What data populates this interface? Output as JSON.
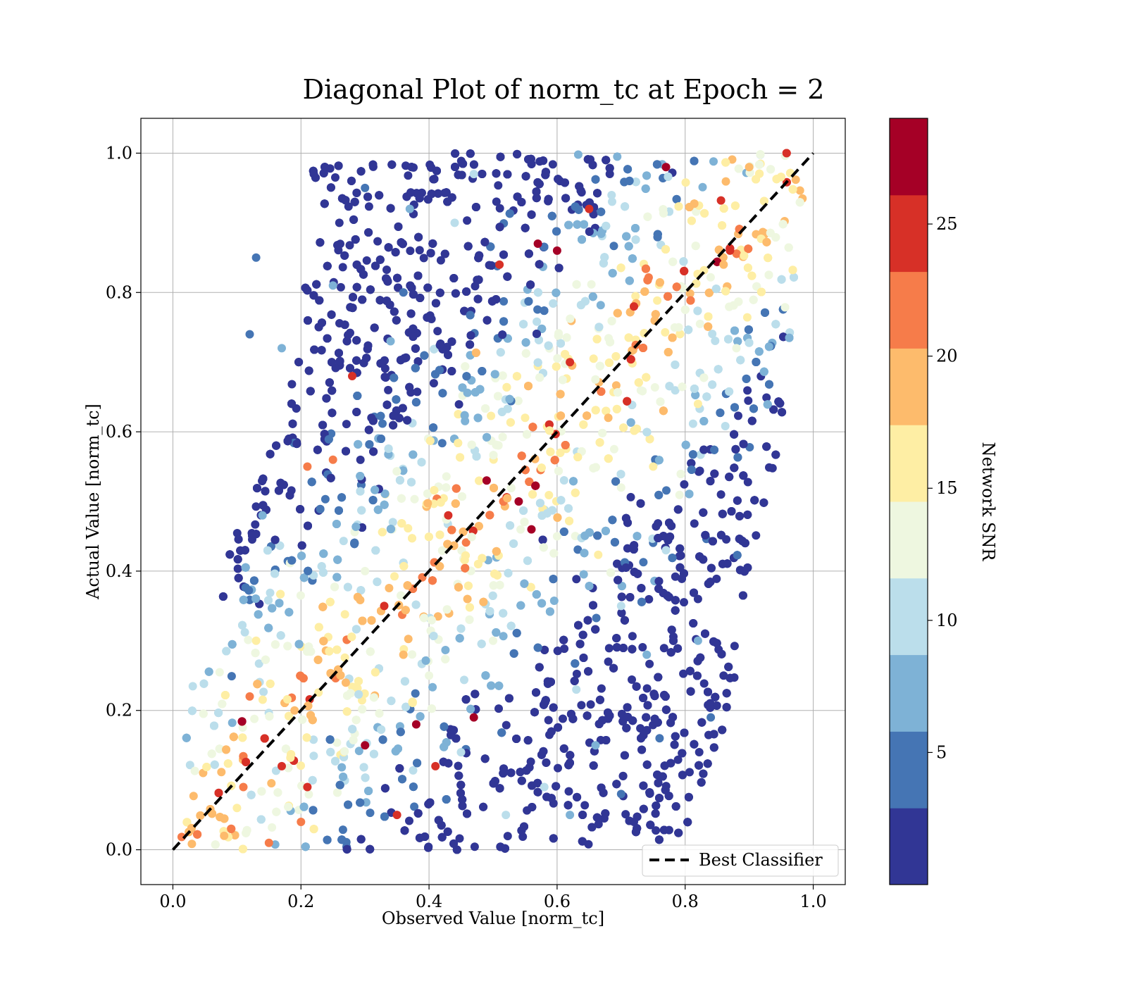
{
  "chart_data": {
    "type": "scatter",
    "title": "Diagonal Plot of norm_tc at Epoch = 2",
    "xlabel": "Observed Value [norm_tc]",
    "ylabel": "Actual Value [norm_tc]",
    "xlim": [
      -0.05,
      1.05
    ],
    "ylim": [
      -0.05,
      1.05
    ],
    "xticks": [
      "0.0",
      "0.2",
      "0.4",
      "0.6",
      "0.8",
      "1.0"
    ],
    "yticks": [
      "0.0",
      "0.2",
      "0.4",
      "0.6",
      "0.8",
      "1.0"
    ],
    "grid": true,
    "legend": {
      "placement": "lower-right",
      "entries": [
        "Best Classifier"
      ]
    },
    "reference_line": {
      "name": "Best Classifier",
      "x": [
        0,
        1
      ],
      "y": [
        0,
        1
      ],
      "style": "dashed",
      "color": "#000000"
    },
    "colorbar": {
      "label": "Network SNR",
      "range": [
        0,
        29
      ],
      "ticks": [
        "5",
        "10",
        "15",
        "20",
        "25"
      ],
      "tick_values": [
        5,
        10,
        15,
        20,
        25
      ],
      "bin_colors": [
        "#313695",
        "#4575b4",
        "#7eb2d6",
        "#bbdeeb",
        "#eef7e0",
        "#feeea4",
        "#fdbb6c",
        "#f67c4a",
        "#d73027",
        "#a50026"
      ]
    },
    "point_distribution": {
      "x_range_by_y": [
        [
          0.0,
          0.08,
          0.72
        ],
        [
          0.2,
          0.09,
          0.8
        ],
        [
          0.4,
          0.14,
          0.83
        ],
        [
          0.6,
          0.23,
          0.88
        ],
        [
          0.8,
          0.27,
          0.9
        ],
        [
          1.0,
          0.29,
          0.92
        ]
      ],
      "snr_trend": "highest SNR along the diagonal, decreasing with distance from it"
    },
    "points": [
      [
        0.47,
        0.19,
        28
      ],
      [
        0.38,
        0.18,
        27
      ],
      [
        0.3,
        0.15,
        27
      ],
      [
        0.41,
        0.12,
        26
      ],
      [
        0.56,
        0.46,
        27
      ],
      [
        0.54,
        0.5,
        27
      ],
      [
        0.49,
        0.53,
        28
      ],
      [
        0.6,
        0.86,
        28
      ],
      [
        0.57,
        0.87,
        28
      ],
      [
        0.51,
        0.84,
        26
      ],
      [
        0.77,
        0.98,
        27
      ],
      [
        0.35,
        0.05,
        25
      ],
      [
        0.11,
        0.09,
        22
      ],
      [
        0.33,
        0.35,
        24
      ],
      [
        0.43,
        0.48,
        25
      ],
      [
        0.62,
        0.7,
        25
      ],
      [
        0.87,
        0.86,
        24
      ],
      [
        0.72,
        0.78,
        24
      ],
      [
        0.65,
        0.92,
        25
      ],
      [
        0.28,
        0.68,
        24
      ],
      [
        0.21,
        0.55,
        22
      ],
      [
        0.25,
        0.56,
        23
      ],
      [
        0.17,
        0.12,
        24
      ],
      [
        0.12,
        0.22,
        23
      ],
      [
        0.21,
        0.09,
        24
      ],
      [
        0.2,
        0.04,
        21
      ],
      [
        0.15,
        0.01,
        22
      ],
      [
        0.08,
        0.02,
        20
      ],
      [
        0.9,
        0.98,
        18
      ],
      [
        0.86,
        0.84,
        19
      ],
      [
        0.82,
        0.64,
        17
      ],
      [
        0.75,
        0.55,
        15
      ],
      [
        0.68,
        0.62,
        19
      ],
      [
        0.55,
        0.62,
        16
      ],
      [
        0.46,
        0.36,
        18
      ],
      [
        0.36,
        0.28,
        18
      ],
      [
        0.27,
        0.24,
        20
      ],
      [
        0.19,
        0.2,
        19
      ],
      [
        0.1,
        0.06,
        16
      ],
      [
        0.13,
        0.3,
        15
      ],
      [
        0.3,
        0.4,
        13
      ],
      [
        0.4,
        0.25,
        14
      ],
      [
        0.5,
        0.3,
        12
      ],
      [
        0.6,
        0.45,
        13
      ],
      [
        0.7,
        0.52,
        12
      ],
      [
        0.79,
        0.75,
        13
      ],
      [
        0.88,
        0.72,
        12
      ],
      [
        0.47,
        0.97,
        11
      ],
      [
        0.44,
        0.9,
        10
      ],
      [
        0.58,
        0.09,
        9
      ],
      [
        0.52,
        0.05,
        10
      ],
      [
        0.45,
        0.14,
        11
      ],
      [
        0.63,
        0.23,
        10
      ],
      [
        0.7,
        0.35,
        9
      ],
      [
        0.77,
        0.43,
        10
      ],
      [
        0.25,
        0.81,
        8
      ],
      [
        0.34,
        0.73,
        8
      ],
      [
        0.37,
        0.92,
        7
      ],
      [
        0.62,
        0.05,
        7
      ],
      [
        0.66,
        0.15,
        6
      ],
      [
        0.74,
        0.28,
        7
      ],
      [
        0.82,
        0.3,
        6
      ],
      [
        0.14,
        0.48,
        7
      ],
      [
        0.17,
        0.72,
        6
      ],
      [
        0.13,
        0.85,
        4
      ],
      [
        0.3,
        0.95,
        4
      ],
      [
        0.36,
        0.8,
        4
      ],
      [
        0.7,
        0.08,
        4
      ],
      [
        0.76,
        0.16,
        3
      ],
      [
        0.84,
        0.19,
        3
      ],
      [
        0.86,
        0.25,
        2
      ],
      [
        0.22,
        0.97,
        2
      ],
      [
        0.26,
        0.9,
        2
      ],
      [
        0.31,
        0.62,
        2
      ],
      [
        0.12,
        0.74,
        3
      ],
      [
        0.82,
        0.36,
        2
      ],
      [
        0.72,
        0.04,
        2
      ],
      [
        0.68,
        0.27,
        2
      ]
    ]
  }
}
